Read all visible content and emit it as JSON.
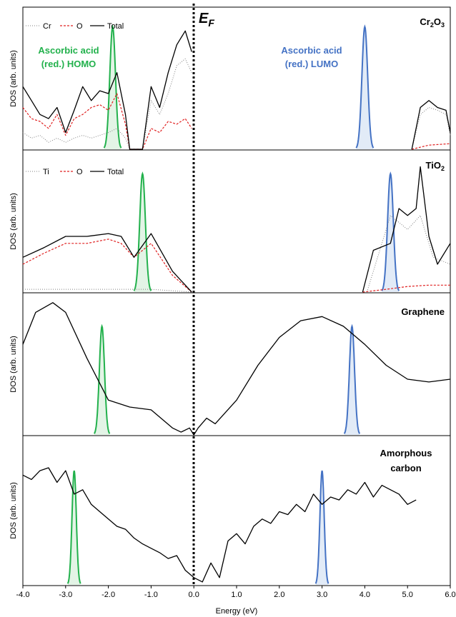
{
  "colors": {
    "homo": "#22b14c",
    "homo_fill": "#e3f4e6",
    "lumo": "#4472c4",
    "lumo_fill": "#e2ebf7",
    "total": "#000000",
    "oxygen": "#e02020",
    "metal": "#808080"
  },
  "x_axis": {
    "label": "Energy (eV)",
    "ticks": [
      "-4.0",
      "-3.0",
      "-2.0",
      "-1.0",
      "0.0",
      "1.0",
      "2.0",
      "3.0",
      "4.0",
      "5.0",
      "6.0"
    ]
  },
  "fermi_label": "E",
  "fermi_sub": "F",
  "chart_data": [
    {
      "type": "line",
      "title": "Cr",
      "title_sub1": "2",
      "title_mid": "O",
      "title_sub2": "3",
      "ylabel": "DOS (arb. units)",
      "xlim": [
        -4.0,
        6.0
      ],
      "legend": [
        "Cr",
        "O",
        "Total"
      ],
      "annotations": {
        "homo": [
          "Ascorbic acid",
          "(red.) HOMO"
        ],
        "lumo": [
          "Ascorbic acid",
          "(red.) LUMO"
        ]
      },
      "homo_peak": {
        "center": -1.9,
        "height": 0.88,
        "width": 0.2
      },
      "lumo_peak": {
        "center": 4.0,
        "height": 0.88,
        "width": 0.2
      },
      "series": [
        {
          "name": "Total",
          "x": [
            -4.0,
            -3.8,
            -3.6,
            -3.4,
            -3.2,
            -3.0,
            -2.8,
            -2.6,
            -2.4,
            -2.2,
            -2.0,
            -1.8,
            -1.6,
            -1.5,
            -1.2,
            -1.0,
            -0.8,
            -0.6,
            -0.4,
            -0.2,
            -0.05,
            5.1,
            5.3,
            5.5,
            5.7,
            5.9,
            6.0
          ],
          "y": [
            0.45,
            0.35,
            0.25,
            0.22,
            0.3,
            0.12,
            0.28,
            0.45,
            0.35,
            0.42,
            0.4,
            0.55,
            0.25,
            0.0,
            0.0,
            0.45,
            0.3,
            0.55,
            0.75,
            0.85,
            0.7,
            0.0,
            0.3,
            0.35,
            0.3,
            0.28,
            0.12
          ]
        },
        {
          "name": "O",
          "x": [
            -4.0,
            -3.8,
            -3.6,
            -3.4,
            -3.2,
            -3.0,
            -2.8,
            -2.6,
            -2.4,
            -2.2,
            -2.0,
            -1.8,
            -1.6,
            -1.5,
            -1.2,
            -1.0,
            -0.8,
            -0.6,
            -0.4,
            -0.2,
            -0.05,
            5.1,
            5.5,
            6.0
          ],
          "y": [
            0.3,
            0.22,
            0.2,
            0.15,
            0.25,
            0.1,
            0.22,
            0.25,
            0.3,
            0.32,
            0.28,
            0.4,
            0.18,
            0.0,
            0.0,
            0.15,
            0.12,
            0.2,
            0.18,
            0.22,
            0.15,
            0.0,
            0.03,
            0.04
          ]
        },
        {
          "name": "Cr",
          "x": [
            -4.0,
            -3.8,
            -3.6,
            -3.4,
            -3.2,
            -3.0,
            -2.8,
            -2.6,
            -2.4,
            -2.2,
            -2.0,
            -1.8,
            -1.6,
            -1.5,
            -1.2,
            -1.0,
            -0.8,
            -0.6,
            -0.4,
            -0.2,
            -0.05,
            5.1,
            5.3,
            5.5,
            5.7,
            5.9,
            6.0
          ],
          "y": [
            0.12,
            0.08,
            0.1,
            0.05,
            0.08,
            0.05,
            0.08,
            0.1,
            0.08,
            0.1,
            0.12,
            0.15,
            0.08,
            0.0,
            0.0,
            0.35,
            0.25,
            0.4,
            0.6,
            0.65,
            0.55,
            0.0,
            0.25,
            0.3,
            0.28,
            0.25,
            0.1
          ]
        }
      ]
    },
    {
      "type": "line",
      "title": "TiO",
      "title_sub1": "2",
      "ylabel": "DOS (arb. units)",
      "xlim": [
        -4.0,
        6.0
      ],
      "legend": [
        "Ti",
        "O",
        "Total"
      ],
      "homo_peak": {
        "center": -1.2,
        "height": 0.85,
        "width": 0.2
      },
      "lumo_peak": {
        "center": 4.6,
        "height": 0.85,
        "width": 0.2
      },
      "series": [
        {
          "name": "Total",
          "x": [
            -4.0,
            -3.5,
            -3.0,
            -2.5,
            -2.0,
            -1.7,
            -1.4,
            -1.0,
            -0.5,
            -0.05,
            3.95,
            4.2,
            4.6,
            4.8,
            5.0,
            5.2,
            5.3,
            5.5,
            5.7,
            6.0
          ],
          "y": [
            0.25,
            0.32,
            0.4,
            0.4,
            0.42,
            0.4,
            0.25,
            0.42,
            0.15,
            0.0,
            0.0,
            0.3,
            0.35,
            0.6,
            0.55,
            0.6,
            0.9,
            0.4,
            0.2,
            0.35
          ]
        },
        {
          "name": "O",
          "x": [
            -4.0,
            -3.5,
            -3.0,
            -2.5,
            -2.0,
            -1.7,
            -1.4,
            -1.0,
            -0.5,
            -0.05,
            3.95,
            4.5,
            5.0,
            5.5,
            6.0
          ],
          "y": [
            0.2,
            0.28,
            0.35,
            0.35,
            0.38,
            0.35,
            0.25,
            0.35,
            0.12,
            0.0,
            0.0,
            0.02,
            0.04,
            0.05,
            0.05
          ]
        },
        {
          "name": "Ti",
          "x": [
            -4.0,
            -3.0,
            -2.0,
            -1.0,
            -0.05,
            4.05,
            4.6,
            5.0,
            5.3,
            5.6,
            6.0
          ],
          "y": [
            0.02,
            0.02,
            0.02,
            0.02,
            0.0,
            0.0,
            0.55,
            0.45,
            0.55,
            0.25,
            0.2
          ]
        }
      ]
    },
    {
      "type": "line",
      "title": "Graphene",
      "ylabel": "DOS (arb. units)",
      "xlim": [
        -4.0,
        6.0
      ],
      "homo_peak": {
        "center": -2.15,
        "height": 0.78,
        "width": 0.18
      },
      "lumo_peak": {
        "center": 3.7,
        "height": 0.78,
        "width": 0.18
      },
      "series": [
        {
          "name": "Total",
          "x": [
            -4.0,
            -3.7,
            -3.3,
            -3.0,
            -2.5,
            -2.0,
            -1.5,
            -1.0,
            -0.5,
            -0.3,
            -0.1,
            0.0,
            0.1,
            0.3,
            0.5,
            1.0,
            1.5,
            2.0,
            2.5,
            3.0,
            3.5,
            4.0,
            4.5,
            5.0,
            5.5,
            6.0
          ],
          "y": [
            0.65,
            0.88,
            0.95,
            0.88,
            0.55,
            0.25,
            0.2,
            0.18,
            0.05,
            0.02,
            0.05,
            0.0,
            0.05,
            0.12,
            0.08,
            0.25,
            0.5,
            0.7,
            0.82,
            0.85,
            0.78,
            0.65,
            0.5,
            0.4,
            0.38,
            0.4
          ]
        }
      ]
    },
    {
      "type": "line",
      "title": "Amorphous",
      "title_line2": "carbon",
      "ylabel": "DOS (arb. units)",
      "xlim": [
        -4.0,
        6.0
      ],
      "homo_peak": {
        "center": -2.8,
        "height": 0.78,
        "width": 0.15
      },
      "lumo_peak": {
        "center": 3.0,
        "height": 0.78,
        "width": 0.15
      },
      "series": [
        {
          "name": "Total",
          "x": [
            -4.0,
            -3.8,
            -3.6,
            -3.4,
            -3.2,
            -3.0,
            -2.8,
            -2.6,
            -2.4,
            -2.2,
            -2.0,
            -1.8,
            -1.6,
            -1.4,
            -1.2,
            -1.0,
            -0.8,
            -0.6,
            -0.4,
            -0.2,
            0.0,
            0.2,
            0.4,
            0.6,
            0.8,
            1.0,
            1.2,
            1.4,
            1.6,
            1.8,
            2.0,
            2.2,
            2.4,
            2.6,
            2.8,
            3.0,
            3.2,
            3.4,
            3.6,
            3.8,
            4.0,
            4.2,
            4.4,
            4.6,
            4.8,
            5.0,
            5.2
          ],
          "y": [
            0.75,
            0.72,
            0.78,
            0.8,
            0.7,
            0.78,
            0.62,
            0.65,
            0.55,
            0.5,
            0.45,
            0.4,
            0.38,
            0.32,
            0.28,
            0.25,
            0.22,
            0.18,
            0.2,
            0.1,
            0.05,
            0.02,
            0.15,
            0.05,
            0.3,
            0.35,
            0.28,
            0.4,
            0.45,
            0.42,
            0.5,
            0.48,
            0.55,
            0.5,
            0.62,
            0.55,
            0.6,
            0.58,
            0.65,
            0.62,
            0.7,
            0.6,
            0.68,
            0.65,
            0.62,
            0.55,
            0.58
          ]
        }
      ]
    }
  ]
}
